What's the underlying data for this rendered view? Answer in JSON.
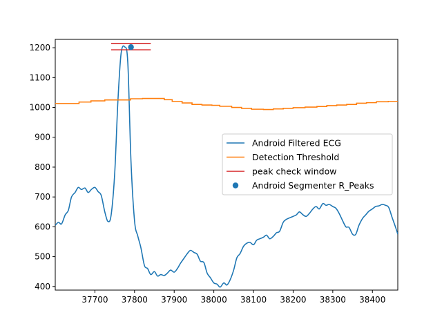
{
  "chart_data": {
    "type": "line",
    "xlim": [
      37600,
      38464
    ],
    "ylim": [
      388,
      1228
    ],
    "grid": false,
    "legend_position": "center-right",
    "x_ticks": [
      37700,
      37800,
      37900,
      38000,
      38100,
      38200,
      38300,
      38400
    ],
    "y_ticks": [
      400,
      500,
      600,
      700,
      800,
      900,
      1000,
      1100,
      1200
    ],
    "series": [
      {
        "name": "Android Filtered ECG",
        "kind": "line",
        "color": "#1f77b4",
        "x": [
          37600,
          37608,
          37616,
          37625,
          37633,
          37641,
          37650,
          37658,
          37666,
          37675,
          37683,
          37691,
          37700,
          37708,
          37716,
          37725,
          37733,
          37741,
          37750,
          37758,
          37766,
          37775,
          37783,
          37791,
          37800,
          37808,
          37816,
          37825,
          37833,
          37841,
          37850,
          37858,
          37866,
          37875,
          37883,
          37891,
          37900,
          37908,
          37916,
          37925,
          37933,
          37941,
          37950,
          37958,
          37966,
          37975,
          37983,
          37991,
          38000,
          38008,
          38016,
          38025,
          38033,
          38041,
          38050,
          38058,
          38066,
          38075,
          38083,
          38091,
          38100,
          38108,
          38116,
          38125,
          38133,
          38141,
          38150,
          38158,
          38166,
          38175,
          38183,
          38191,
          38200,
          38208,
          38216,
          38225,
          38233,
          38241,
          38250,
          38258,
          38266,
          38275,
          38283,
          38291,
          38300,
          38308,
          38316,
          38325,
          38333,
          38341,
          38350,
          38358,
          38366,
          38375,
          38383,
          38391,
          38400,
          38408,
          38416,
          38425,
          38433,
          38441,
          38450,
          38458,
          38464
        ],
        "y": [
          605,
          615,
          610,
          640,
          655,
          700,
          715,
          732,
          725,
          730,
          715,
          725,
          732,
          718,
          705,
          650,
          618,
          640,
          780,
          1020,
          1180,
          1203,
          1150,
          820,
          620,
          570,
          530,
          470,
          460,
          440,
          450,
          435,
          440,
          437,
          445,
          455,
          448,
          460,
          478,
          495,
          510,
          521,
          514,
          508,
          485,
          480,
          445,
          430,
          412,
          408,
          398,
          412,
          405,
          422,
          455,
          496,
          510,
          535,
          545,
          548,
          540,
          555,
          560,
          565,
          572,
          560,
          568,
          580,
          585,
          615,
          625,
          630,
          635,
          640,
          650,
          640,
          635,
          645,
          660,
          668,
          660,
          678,
          672,
          675,
          668,
          662,
          645,
          620,
          600,
          598,
          575,
          575,
          605,
          628,
          640,
          652,
          660,
          668,
          670,
          675,
          672,
          665,
          630,
          600,
          575
        ]
      },
      {
        "name": "Detection Threshold",
        "kind": "step",
        "color": "#ff7f0e",
        "x": [
          37600,
          37630,
          37660,
          37690,
          37725,
          37755,
          37790,
          37820,
          37848,
          37875,
          37895,
          37920,
          37945,
          37970,
          37995,
          38015,
          38045,
          38070,
          38095,
          38125,
          38150,
          38175,
          38200,
          38230,
          38260,
          38285,
          38310,
          38335,
          38360,
          38385,
          38410,
          38440,
          38464
        ],
        "y": [
          1013,
          1013,
          1018,
          1022,
          1025,
          1025,
          1029,
          1030,
          1030,
          1026,
          1020,
          1015,
          1010,
          1008,
          1007,
          1004,
          1000,
          997,
          994,
          993,
          995,
          997,
          999,
          1001,
          1003,
          1006,
          1008,
          1010,
          1014,
          1016,
          1019,
          1020,
          1020
        ]
      },
      {
        "name": "peak check window",
        "kind": "hlines",
        "color": "#d62728",
        "x_start": 37741,
        "x_end": 37841,
        "y": [
          1214,
          1193
        ]
      },
      {
        "name": "Android Segmenter R_Peaks",
        "kind": "scatter",
        "color": "#1f77b4",
        "x": [
          37791
        ],
        "y": [
          1202
        ]
      }
    ]
  }
}
